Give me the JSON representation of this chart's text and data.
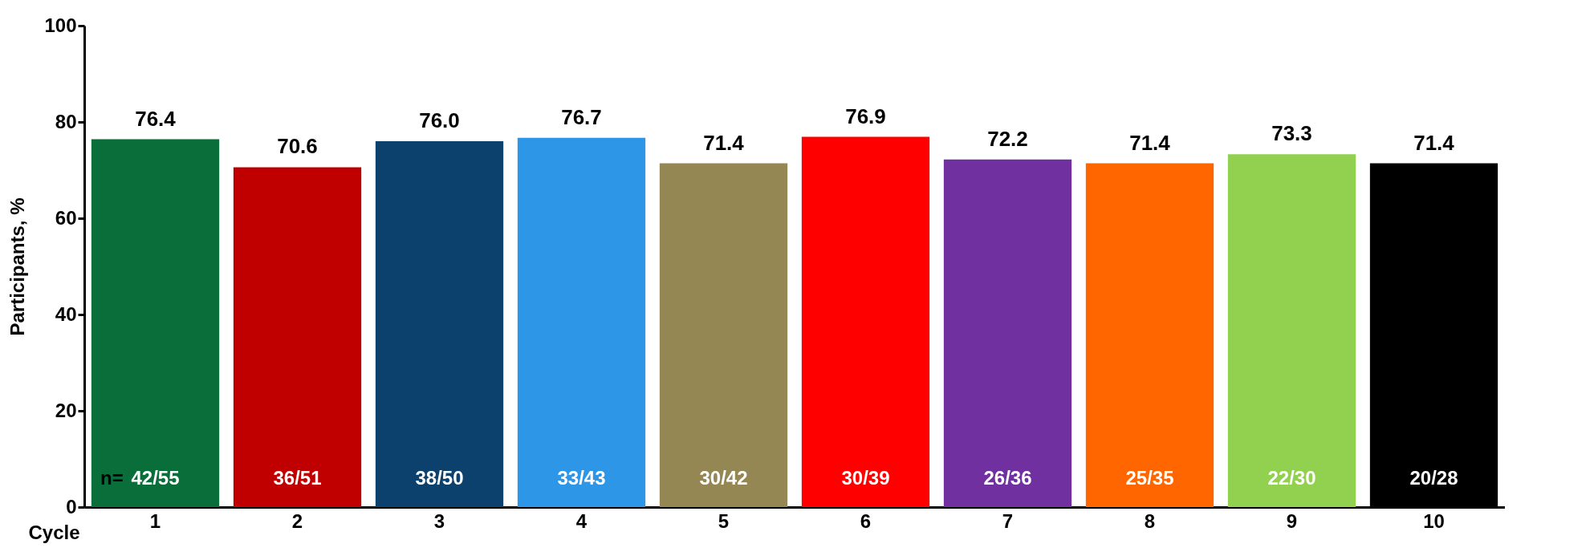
{
  "chart_data": {
    "type": "bar",
    "ylabel": "Participants, %",
    "xlabel": "Cycle",
    "categories": [
      "1",
      "2",
      "3",
      "4",
      "5",
      "6",
      "7",
      "8",
      "9",
      "10"
    ],
    "values": [
      76.4,
      70.6,
      76.0,
      76.7,
      71.4,
      76.9,
      72.2,
      71.4,
      73.3,
      71.4
    ],
    "value_labels": [
      "76.4",
      "70.6",
      "76.0",
      "76.7",
      "71.4",
      "76.9",
      "72.2",
      "71.4",
      "73.3",
      "71.4"
    ],
    "colors": [
      "#0a6e3a",
      "#c00000",
      "#0c416e",
      "#2d96e6",
      "#948754",
      "#ff0000",
      "#7030a0",
      "#ff6600",
      "#92d050",
      "#000000"
    ],
    "ylim": [
      0,
      100
    ],
    "yticks": [
      0,
      20,
      40,
      60,
      80,
      100
    ],
    "grid": false,
    "legend": false,
    "annotations": [
      "n=",
      "42/55",
      "36/51",
      "38/50",
      "33/43",
      "30/42",
      "30/39",
      "26/36",
      "25/35",
      "22/30",
      "20/28"
    ]
  }
}
